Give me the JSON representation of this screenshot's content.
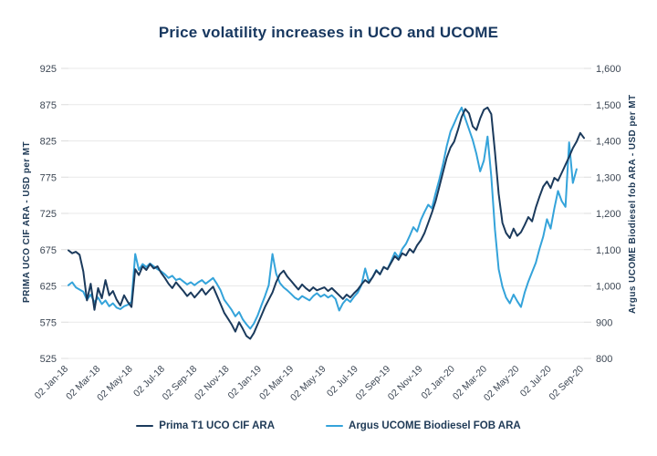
{
  "chart_data": {
    "type": "line",
    "title": "Price volatility increases in UCO and UCOME",
    "grid": true,
    "legend_position": "bottom",
    "x_axis": {
      "frequency": "weekly",
      "start": "02 Jan-18",
      "end": "02 Sep-20",
      "tick_labels": [
        "02 Jan-18",
        "02 Mar-18",
        "02 May-18",
        "02 Jul-18",
        "02 Sep-18",
        "02 Nov-18",
        "02 Jan-19",
        "02 Mar-19",
        "02 May-19",
        "02 Jul-19",
        "02 Sep-19",
        "02 Nov-19",
        "02 Jan-20",
        "02 Mar-20",
        "02 May-20",
        "02 Jul-20",
        "02 Sep-20"
      ]
    },
    "left_axis": {
      "label": "PRIMA UCO CIF ARA - USD per MT",
      "range": [
        525,
        925
      ],
      "tick_labels": [
        "925",
        "875",
        "825",
        "775",
        "725",
        "675",
        "625",
        "575",
        "525"
      ],
      "ticks": [
        925,
        875,
        825,
        775,
        725,
        675,
        625,
        575,
        525
      ]
    },
    "right_axis": {
      "label": "Argus UCOME Biodiesel fob ARA - USD per MT",
      "range": [
        800,
        1600
      ],
      "tick_labels": [
        "1,600",
        "1,500",
        "1,400",
        "1,300",
        "1,200",
        "1,100",
        "1,000",
        "900",
        "800"
      ],
      "ticks": [
        1600,
        1500,
        1400,
        1300,
        1200,
        1100,
        1000,
        900,
        800
      ]
    },
    "series": [
      {
        "name": "Prima T1 UCO CIF ARA",
        "axis": "left",
        "color": "#1b3a5c",
        "values": [
          674,
          670,
          672,
          668,
          645,
          605,
          628,
          592,
          622,
          608,
          633,
          612,
          618,
          606,
          598,
          612,
          603,
          596,
          648,
          640,
          652,
          647,
          655,
          649,
          652,
          643,
          636,
          628,
          622,
          630,
          624,
          618,
          611,
          616,
          609,
          615,
          621,
          613,
          619,
          624,
          612,
          600,
          588,
          580,
          572,
          562,
          575,
          566,
          556,
          552,
          560,
          572,
          584,
          596,
          606,
          616,
          630,
          641,
          646,
          638,
          632,
          626,
          620,
          627,
          622,
          618,
          623,
          619,
          621,
          623,
          618,
          622,
          617,
          612,
          607,
          613,
          609,
          615,
          620,
          627,
          633,
          629,
          637,
          646,
          641,
          651,
          648,
          657,
          666,
          661,
          670,
          667,
          676,
          671,
          681,
          688,
          698,
          712,
          726,
          742,
          762,
          782,
          802,
          816,
          824,
          840,
          858,
          869,
          863,
          845,
          840,
          856,
          868,
          871,
          862,
          810,
          752,
          712,
          698,
          691,
          704,
          694,
          699,
          709,
          720,
          714,
          733,
          748,
          762,
          769,
          760,
          774,
          770,
          781,
          792,
          803,
          815,
          824,
          836,
          829
        ]
      },
      {
        "name": "Argus UCOME Biodiesel FOB ARA",
        "axis": "right",
        "color": "#34a3da",
        "values": [
          1002,
          1010,
          996,
          990,
          984,
          962,
          976,
          955,
          968,
          950,
          960,
          944,
          952,
          940,
          936,
          944,
          948,
          956,
          1088,
          1044,
          1060,
          1052,
          1062,
          1054,
          1046,
          1040,
          1032,
          1022,
          1028,
          1016,
          1020,
          1012,
          1004,
          1010,
          1002,
          1010,
          1016,
          1006,
          1014,
          1022,
          1006,
          988,
          962,
          948,
          934,
          916,
          928,
          908,
          894,
          882,
          896,
          918,
          946,
          972,
          1002,
          1088,
          1034,
          1008,
          996,
          988,
          978,
          968,
          962,
          972,
          966,
          960,
          972,
          980,
          970,
          976,
          968,
          974,
          964,
          932,
          952,
          964,
          956,
          970,
          982,
          1002,
          1048,
          1012,
          1024,
          1044,
          1032,
          1052,
          1046,
          1068,
          1092,
          1078,
          1102,
          1116,
          1138,
          1162,
          1150,
          1182,
          1204,
          1224,
          1214,
          1256,
          1294,
          1336,
          1386,
          1426,
          1448,
          1472,
          1492,
          1462,
          1432,
          1402,
          1364,
          1316,
          1346,
          1412,
          1302,
          1156,
          1046,
          998,
          968,
          952,
          976,
          958,
          942,
          982,
          1012,
          1038,
          1064,
          1102,
          1136,
          1184,
          1158,
          1214,
          1262,
          1234,
          1218,
          1396,
          1284,
          1322
        ]
      }
    ]
  }
}
